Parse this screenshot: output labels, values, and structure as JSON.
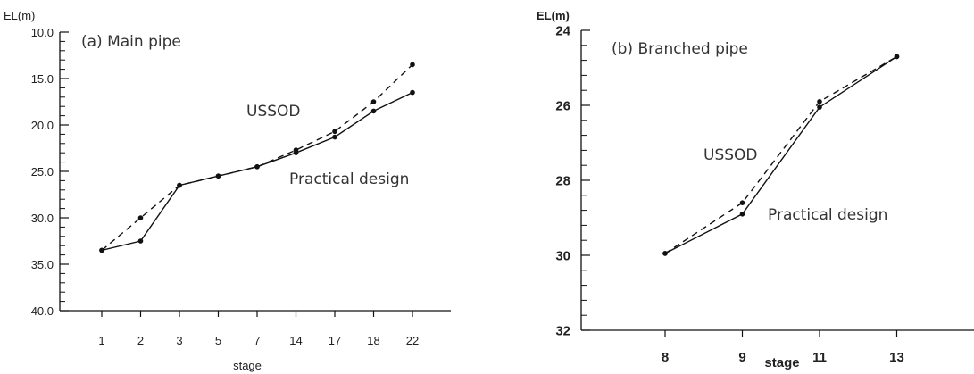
{
  "chart_data": [
    {
      "type": "line",
      "title": "(a) Main pipe",
      "ylabel": "EL(m)",
      "xlabel": "stage",
      "categories": [
        "1",
        "2",
        "3",
        "5",
        "7",
        "14",
        "17",
        "18",
        "22"
      ],
      "ylim": [
        10.0,
        40.0
      ],
      "y_inverted": true,
      "y_ticks": [
        "10.0",
        "15.0",
        "20.0",
        "25.0",
        "30.0",
        "35.0",
        "40.0"
      ],
      "series": [
        {
          "name": "USSOD",
          "style": "dashed",
          "values": [
            33.5,
            30.0,
            26.5,
            25.5,
            24.5,
            22.7,
            20.7,
            17.5,
            13.5
          ]
        },
        {
          "name": "Practical design",
          "style": "solid",
          "values": [
            33.5,
            32.5,
            26.5,
            25.5,
            24.5,
            23.0,
            21.3,
            18.5,
            16.5
          ]
        }
      ]
    },
    {
      "type": "line",
      "title": "(b) Branched pipe",
      "ylabel": "EL(m)",
      "xlabel": "stage",
      "categories": [
        "8",
        "9",
        "11",
        "13"
      ],
      "ylim": [
        24,
        32
      ],
      "y_inverted": true,
      "y_ticks": [
        "24",
        "26",
        "28",
        "30",
        "32"
      ],
      "series": [
        {
          "name": "USSOD",
          "style": "dashed",
          "values": [
            29.95,
            28.6,
            25.9,
            24.7
          ]
        },
        {
          "name": "Practical design",
          "style": "solid",
          "values": [
            29.95,
            28.9,
            26.05,
            24.7
          ]
        }
      ]
    }
  ],
  "colors": {
    "line": "#111111",
    "text": "#333333"
  }
}
